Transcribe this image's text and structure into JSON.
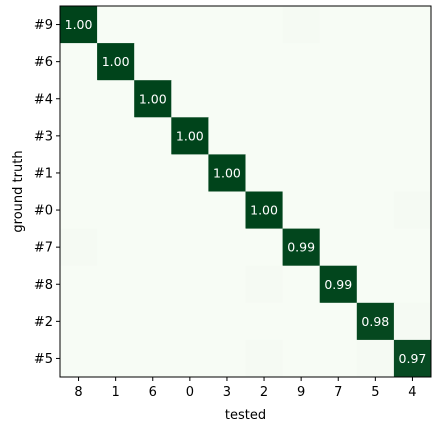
{
  "chart_data": {
    "type": "heatmap",
    "xlabel": "tested",
    "ylabel": "ground truth",
    "x_categories": [
      "8",
      "1",
      "6",
      "0",
      "3",
      "2",
      "9",
      "7",
      "5",
      "4"
    ],
    "y_categories": [
      "#9",
      "#6",
      "#4",
      "#3",
      "#1",
      "#0",
      "#7",
      "#8",
      "#2",
      "#5"
    ],
    "values": [
      [
        1.0,
        0,
        0,
        0,
        0,
        0,
        0.01,
        0,
        0,
        0
      ],
      [
        0,
        1.0,
        0,
        0,
        0,
        0,
        0,
        0,
        0,
        0
      ],
      [
        0,
        0,
        1.0,
        0,
        0,
        0,
        0,
        0,
        0,
        0
      ],
      [
        0,
        0,
        0,
        1.0,
        0,
        0,
        0,
        0,
        0,
        0
      ],
      [
        0,
        0,
        0,
        0,
        1.0,
        0,
        0,
        0,
        0,
        0
      ],
      [
        0,
        0,
        0,
        0,
        0,
        1.0,
        0,
        0,
        0,
        0.01
      ],
      [
        0.01,
        0,
        0,
        0,
        0,
        0,
        0.99,
        0,
        0,
        0
      ],
      [
        0,
        0,
        0,
        0,
        0,
        0.01,
        0,
        0.99,
        0,
        0
      ],
      [
        0,
        0,
        0,
        0,
        0,
        0,
        0,
        0,
        0.98,
        0.01
      ],
      [
        0,
        0,
        0,
        0,
        0,
        0.01,
        0,
        0,
        0.01,
        0.97
      ]
    ],
    "annotations": [
      {
        "row": 0,
        "col": 0,
        "text": "1.00"
      },
      {
        "row": 1,
        "col": 1,
        "text": "1.00"
      },
      {
        "row": 2,
        "col": 2,
        "text": "1.00"
      },
      {
        "row": 3,
        "col": 3,
        "text": "1.00"
      },
      {
        "row": 4,
        "col": 4,
        "text": "1.00"
      },
      {
        "row": 5,
        "col": 5,
        "text": "1.00"
      },
      {
        "row": 6,
        "col": 6,
        "text": "0.99"
      },
      {
        "row": 7,
        "col": 7,
        "text": "0.99"
      },
      {
        "row": 8,
        "col": 8,
        "text": "0.98"
      },
      {
        "row": 9,
        "col": 9,
        "text": "0.97"
      }
    ],
    "colormap": {
      "low": "#f7fcf5",
      "high": "#00441b"
    },
    "annotation_color": "#ffffff",
    "grid": false
  }
}
